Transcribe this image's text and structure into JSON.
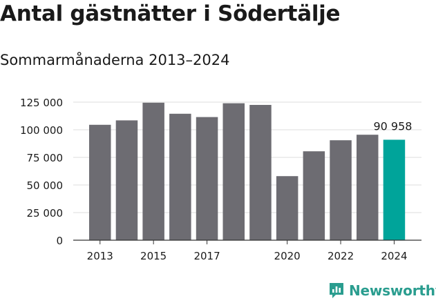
{
  "header": {
    "title": "Antal gästnätter i Södertälje",
    "subtitle": "Sommarmånaderna 2013–2024"
  },
  "brand": {
    "name": "Newsworthy",
    "icon": "newsworthy-logo-icon",
    "color": "#2a9d8f"
  },
  "colors": {
    "bar": "#6d6c72",
    "highlight": "#00a49a",
    "grid": "#dcdcdc"
  },
  "chart_data": {
    "type": "bar",
    "x": [
      2013,
      2014,
      2015,
      2016,
      2017,
      2018,
      2019,
      2020,
      2021,
      2022,
      2023,
      2024
    ],
    "values": [
      104500,
      108500,
      124500,
      114500,
      111500,
      124000,
      122500,
      58000,
      80500,
      90500,
      95500,
      90958
    ],
    "highlight_index": 11,
    "annotation": {
      "index": 11,
      "text": "90 958"
    },
    "x_tick_labels": [
      "2013",
      "2015",
      "2017",
      "2020",
      "2022",
      "2024"
    ],
    "x_tick_label_years": [
      2013,
      2015,
      2017,
      2020,
      2022,
      2024
    ],
    "y_ticks": [
      0,
      25000,
      50000,
      75000,
      100000,
      125000
    ],
    "y_tick_labels": [
      "0",
      "25 000",
      "50 000",
      "75 000",
      "100 000",
      "125 000"
    ],
    "ylim": [
      0,
      125000
    ],
    "grid": true
  }
}
